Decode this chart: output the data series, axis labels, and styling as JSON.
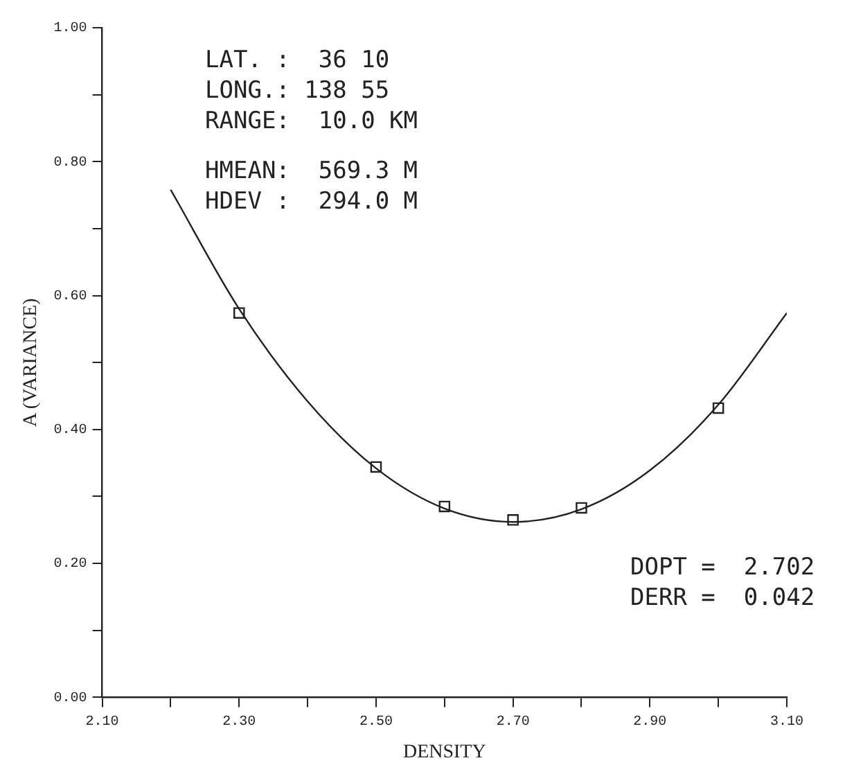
{
  "chart_data": {
    "type": "scatter",
    "xlabel": "DENSITY",
    "ylabel": "A (VARIANCE)",
    "x": [
      2.3,
      2.5,
      2.6,
      2.7,
      2.8,
      3.0
    ],
    "series": [
      {
        "color": "#222222",
        "marker": "square",
        "values": [
          0.574,
          0.344,
          0.285,
          0.265,
          0.283,
          0.432
        ]
      },
      {
        "type": "line",
        "color": "#222222",
        "marker": "none",
        "x": [
          2.2,
          2.3,
          2.4,
          2.5,
          2.6,
          2.7,
          2.8,
          2.9,
          3.0,
          3.1
        ],
        "values": [
          0.758,
          0.58,
          0.442,
          0.342,
          0.282,
          0.262,
          0.281,
          0.339,
          0.437,
          0.574
        ]
      }
    ],
    "xlim": [
      2.1,
      3.1
    ],
    "xticks": [
      {
        "value": 2.1,
        "label": "2.10"
      },
      {
        "value": 2.2,
        "label": null
      },
      {
        "value": 2.3,
        "label": "2.30"
      },
      {
        "value": 2.4,
        "label": null
      },
      {
        "value": 2.5,
        "label": "2.50"
      },
      {
        "value": 2.6,
        "label": null
      },
      {
        "value": 2.7,
        "label": "2.70"
      },
      {
        "value": 2.8,
        "label": null
      },
      {
        "value": 2.9,
        "label": "2.90"
      },
      {
        "value": 3.0,
        "label": null
      },
      {
        "value": 3.1,
        "label": "3.10"
      }
    ],
    "ylim": [
      0,
      1
    ],
    "yticks": [
      {
        "value": 0,
        "label": "0.00"
      },
      {
        "value": 0.1,
        "label": null
      },
      {
        "value": 0.2,
        "label": "0.20"
      },
      {
        "value": 0.3,
        "label": null
      },
      {
        "value": 0.4,
        "label": "0.40"
      },
      {
        "value": 0.5,
        "label": null
      },
      {
        "value": 0.6,
        "label": "0.60"
      },
      {
        "value": 0.7,
        "label": null
      },
      {
        "value": 0.8,
        "label": "0.80"
      },
      {
        "value": 0.9,
        "label": null
      },
      {
        "value": 1.0,
        "label": "1.00"
      }
    ],
    "grid": false,
    "legend": false,
    "annotations": [
      "LAT. :  36 10",
      "LONG.: 138 55",
      "RANGE:  10.0 KM",
      "HMEAN:  569.3 M",
      "HDEV :  294.0 M",
      "DOPT =  2.702",
      "DERR =  0.042"
    ]
  }
}
